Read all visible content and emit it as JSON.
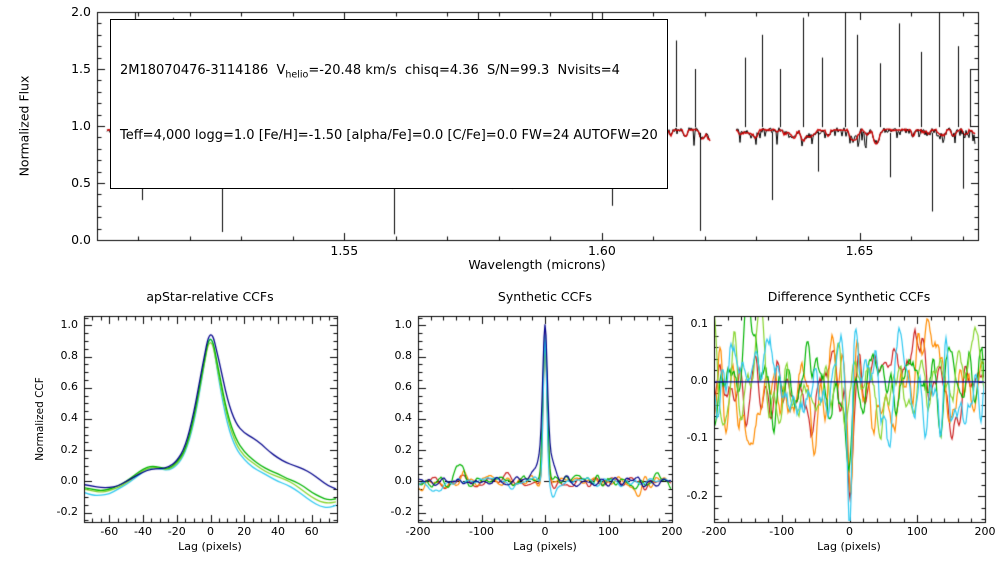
{
  "figure": {
    "background": "#ffffff",
    "text_color": "#000000"
  },
  "annotation": {
    "line1_prefix": "2M18070476-3114186  V",
    "line1_sub": "helio",
    "line1_suffix": "=-20.48 km/s  chisq=4.36  S/N=99.3  Nvisits=4",
    "line2": "Teff=4,000 logg=1.0 [Fe/H]=-1.50 [alpha/Fe]=0.0 [C/Fe]=0.0 FW=24 AUTOFW=20",
    "star_id": "2M18070476-3114186",
    "vhelio_kms": -20.48,
    "chisq": 4.36,
    "snr": 99.3,
    "nvisits": 4,
    "teff": "4,000",
    "logg": 1.0,
    "feh": -1.5,
    "alpha_fe": 0.0,
    "c_fe": 0.0,
    "fw": 24,
    "autofw": 20
  },
  "chart_data": [
    {
      "id": "apogee-spectrum",
      "type": "line",
      "title": "",
      "xlabel": "Wavelength (microns)",
      "ylabel": "Normalized Flux",
      "xlim": [
        1.502,
        1.673
      ],
      "ylim": [
        0.0,
        2.0
      ],
      "xticks": [
        1.55,
        1.6,
        1.65
      ],
      "xtick_labels": [
        "1.55",
        "1.60",
        "1.65"
      ],
      "yticks": [
        0,
        0.5,
        1,
        1.5,
        2
      ],
      "ytick_labels": [
        "0.0",
        "0.5",
        "1.0",
        "1.5",
        "2.0"
      ],
      "xminor": 0.01,
      "yminor": 0.1,
      "grid": false,
      "observed_color": "#000000",
      "model_color": "#cc0000",
      "continuum": 0.965,
      "noise_sigma": 0.022,
      "model_dip_depth_max": 0.13,
      "hair_depth_max": 0.16,
      "segments": [
        [
          1.504,
          1.568
        ],
        [
          1.5705,
          1.621
        ],
        [
          1.626,
          1.6725
        ]
      ],
      "emission_lines": [
        [
          1.5066,
          1.5
        ],
        [
          1.5094,
          2.0
        ],
        [
          1.5132,
          1.4
        ],
        [
          1.5168,
          1.95
        ],
        [
          1.5204,
          1.45
        ],
        [
          1.5236,
          1.8
        ],
        [
          1.5296,
          1.65
        ],
        [
          1.5342,
          1.4
        ],
        [
          1.5414,
          1.85
        ],
        [
          1.5436,
          1.75
        ],
        [
          1.5482,
          1.5
        ],
        [
          1.5524,
          1.4
        ],
        [
          1.5556,
          1.85
        ],
        [
          1.558,
          1.65
        ],
        [
          1.5624,
          1.5
        ],
        [
          1.5722,
          1.45
        ],
        [
          1.576,
          2.0
        ],
        [
          1.58,
          1.5
        ],
        [
          1.5838,
          1.9
        ],
        [
          1.5862,
          1.6
        ],
        [
          1.5905,
          1.75
        ],
        [
          1.5943,
          1.5
        ],
        [
          1.598,
          2.0
        ],
        [
          1.6006,
          1.7
        ],
        [
          1.604,
          1.55
        ],
        [
          1.6076,
          1.85
        ],
        [
          1.6104,
          1.6
        ],
        [
          1.6143,
          1.75
        ],
        [
          1.618,
          1.5
        ],
        [
          1.6278,
          1.6
        ],
        [
          1.631,
          1.8
        ],
        [
          1.6345,
          1.5
        ],
        [
          1.639,
          1.95
        ],
        [
          1.6428,
          1.6
        ],
        [
          1.6472,
          2.0
        ],
        [
          1.6495,
          1.8
        ],
        [
          1.654,
          1.55
        ],
        [
          1.6576,
          1.9
        ],
        [
          1.662,
          1.65
        ],
        [
          1.6655,
          2.0
        ],
        [
          1.6692,
          1.7
        ],
        [
          1.6715,
          1.5
        ]
      ],
      "absorption_lines": [
        [
          1.5108,
          0.35
        ],
        [
          1.5178,
          0.55
        ],
        [
          1.5262,
          0.07
        ],
        [
          1.5338,
          0.5
        ],
        [
          1.5448,
          0.55
        ],
        [
          1.553,
          0.65
        ],
        [
          1.5596,
          0.05
        ],
        [
          1.5648,
          0.5
        ],
        [
          1.5745,
          0.6
        ],
        [
          1.5825,
          0.45
        ],
        [
          1.595,
          0.55
        ],
        [
          1.602,
          0.3
        ],
        [
          1.6115,
          0.5
        ],
        [
          1.619,
          0.08
        ],
        [
          1.633,
          0.35
        ],
        [
          1.642,
          0.6
        ],
        [
          1.656,
          0.55
        ],
        [
          1.664,
          0.25
        ],
        [
          1.67,
          0.45
        ]
      ]
    },
    {
      "id": "apstar-relative-ccfs",
      "type": "line",
      "title": "apStar-relative CCFs",
      "xlabel": "Lag (pixels)",
      "ylabel": "Normalized CCF",
      "xlim": [
        -75,
        75
      ],
      "ylim": [
        -0.26,
        1.06
      ],
      "xticks": [
        -60,
        -40,
        -20,
        0,
        20,
        40,
        60
      ],
      "xtick_labels": [
        "-60",
        "-40",
        "-20",
        "0",
        "20",
        "40",
        "60"
      ],
      "yticks": [
        -0.2,
        0,
        0.2,
        0.4,
        0.6,
        0.8,
        1
      ],
      "ytick_labels": [
        "-0.2",
        "0.0",
        "0.2",
        "0.4",
        "0.6",
        "0.8",
        "1.0"
      ],
      "xminor": 5,
      "yminor": 0.05,
      "grid": false,
      "lags": [
        -75,
        -70,
        -65,
        -60,
        -55,
        -50,
        -45,
        -40,
        -35,
        -30,
        -25,
        -20,
        -15,
        -10,
        -5,
        0,
        5,
        10,
        15,
        20,
        25,
        30,
        35,
        40,
        45,
        50,
        55,
        60,
        65,
        70,
        75
      ],
      "series": [
        {
          "name": "visit-cyan",
          "color": "#2fc8f0",
          "ccf": [
            -0.07,
            -0.09,
            -0.09,
            -0.08,
            -0.05,
            -0.02,
            0.02,
            0.06,
            0.09,
            0.08,
            0.07,
            0.1,
            0.18,
            0.36,
            0.66,
            1.0,
            0.64,
            0.36,
            0.21,
            0.14,
            0.09,
            0.06,
            0.03,
            0.0,
            -0.02,
            -0.05,
            -0.09,
            -0.13,
            -0.16,
            -0.17,
            -0.15
          ]
        },
        {
          "name": "visit-lightgreen",
          "color": "#86d42e",
          "ccf": [
            -0.05,
            -0.06,
            -0.07,
            -0.06,
            -0.04,
            -0.01,
            0.03,
            0.07,
            0.09,
            0.085,
            0.075,
            0.11,
            0.19,
            0.38,
            0.68,
            0.96,
            0.67,
            0.4,
            0.24,
            0.16,
            0.12,
            0.08,
            0.05,
            0.03,
            0.01,
            -0.02,
            -0.06,
            -0.1,
            -0.13,
            -0.14,
            -0.13
          ]
        },
        {
          "name": "visit-green",
          "color": "#00b400",
          "ccf": [
            -0.04,
            -0.05,
            -0.06,
            -0.05,
            -0.03,
            0.0,
            0.04,
            0.08,
            0.1,
            0.09,
            0.08,
            0.12,
            0.2,
            0.4,
            0.7,
            0.98,
            0.7,
            0.43,
            0.27,
            0.19,
            0.14,
            0.1,
            0.07,
            0.05,
            0.02,
            0.0,
            -0.03,
            -0.07,
            -0.1,
            -0.12,
            -0.11
          ]
        },
        {
          "name": "combined",
          "color": "#00008b",
          "ccf": [
            -0.02,
            -0.03,
            -0.04,
            -0.04,
            -0.03,
            0.0,
            0.03,
            0.06,
            0.08,
            0.08,
            0.09,
            0.13,
            0.22,
            0.43,
            0.73,
            1.0,
            0.78,
            0.52,
            0.37,
            0.31,
            0.28,
            0.24,
            0.19,
            0.15,
            0.12,
            0.1,
            0.08,
            0.05,
            0.01,
            -0.03,
            -0.05
          ]
        }
      ]
    },
    {
      "id": "synthetic-ccfs",
      "type": "line",
      "title": "Synthetic CCFs",
      "xlabel": "Lag (pixels)",
      "ylabel": "",
      "xlim": [
        -200,
        200
      ],
      "ylim": [
        -0.26,
        1.06
      ],
      "xticks": [
        -200,
        -100,
        0,
        100,
        200
      ],
      "xtick_labels": [
        "-200",
        "-100",
        "0",
        "100",
        "200"
      ],
      "yticks": [
        -0.2,
        0,
        0.2,
        0.4,
        0.6,
        0.8,
        1
      ],
      "ytick_labels": [
        "-0.2",
        "0.0",
        "0.2",
        "0.4",
        "0.6",
        "0.8",
        "1.0"
      ],
      "xminor": 20,
      "yminor": 0.05,
      "grid": false,
      "zero_line": "dashed",
      "series": [
        {
          "name": "visit-1",
          "color": "#cc2222",
          "seed": 12,
          "noise_amp": 0.055,
          "peaks": [
            [
              0,
              4.5,
              0.96
            ]
          ],
          "features": [
            [
              -130,
              8,
              0.07
            ],
            [
              -62,
              6,
              0.05
            ]
          ]
        },
        {
          "name": "visit-2",
          "color": "#ff8c00",
          "seed": 13,
          "noise_amp": 0.06,
          "peaks": [
            [
              0,
              4,
              0.92
            ]
          ],
          "features": [
            [
              -128,
              7,
              0.09
            ],
            [
              148,
              8,
              -0.07
            ]
          ]
        },
        {
          "name": "visit-3",
          "color": "#00b400",
          "seed": 14,
          "noise_amp": 0.055,
          "peaks": [
            [
              0,
              5,
              0.88
            ]
          ],
          "features": [
            [
              -133,
              9,
              0.12
            ],
            [
              82,
              7,
              0.05
            ]
          ]
        },
        {
          "name": "visit-4",
          "color": "#2fc8f0",
          "seed": 15,
          "noise_amp": 0.05,
          "peaks": [
            [
              0,
              3.8,
              0.97
            ]
          ],
          "features": [
            [
              12,
              6,
              -0.11
            ],
            [
              -172,
              8,
              -0.07
            ]
          ]
        },
        {
          "name": "combined",
          "color": "#00008b",
          "seed": 11,
          "noise_amp": 0.035,
          "peaks": [
            [
              0,
              5,
              0.8
            ],
            [
              0,
              16,
              0.22
            ]
          ],
          "features": []
        }
      ]
    },
    {
      "id": "difference-synthetic-ccfs",
      "type": "line",
      "title": "Difference Synthetic CCFs",
      "xlabel": "Lag (pixels)",
      "ylabel": "",
      "xlim": [
        -200,
        200
      ],
      "ylim": [
        -0.245,
        0.115
      ],
      "xticks": [
        -200,
        -100,
        0,
        100,
        200
      ],
      "xtick_labels": [
        "-200",
        "-100",
        "0",
        "100",
        "200"
      ],
      "yticks": [
        -0.2,
        -0.1,
        0,
        0.1
      ],
      "ytick_labels": [
        "-0.2",
        "-0.1",
        "0.0",
        "0.1"
      ],
      "xminor": 20,
      "yminor": 0.02,
      "grid": false,
      "series": [
        {
          "name": "visit-1",
          "color": "#cc2222",
          "seed": 21,
          "noise_amp": 0.1,
          "features": [
            [
              0,
              5,
              -0.17
            ],
            [
              -60,
              8,
              -0.09
            ],
            [
              -150,
              10,
              -0.05
            ],
            [
              100,
              12,
              0.05
            ]
          ]
        },
        {
          "name": "visit-2",
          "color": "#ff8c00",
          "seed": 22,
          "noise_amp": 0.11,
          "features": [
            [
              2,
              5,
              -0.22
            ],
            [
              -55,
              7,
              -0.1
            ],
            [
              125,
              10,
              0.05
            ],
            [
              -190,
              6,
              0.06
            ]
          ]
        },
        {
          "name": "visit-3",
          "color": "#00b400",
          "seed": 23,
          "noise_amp": 0.1,
          "features": [
            [
              -148,
              6,
              0.1
            ],
            [
              0,
              6,
              -0.12
            ],
            [
              88,
              8,
              0.06
            ],
            [
              196,
              6,
              0.09
            ]
          ]
        },
        {
          "name": "visit-5",
          "color": "#86d42e",
          "seed": 25,
          "noise_amp": 0.1,
          "features": [
            [
              -5,
              6,
              -0.1
            ],
            [
              -130,
              8,
              0.08
            ],
            [
              186,
              6,
              0.08
            ],
            [
              -200,
              5,
              0.07
            ]
          ]
        },
        {
          "name": "visit-4",
          "color": "#2fc8f0",
          "seed": 24,
          "noise_amp": 0.1,
          "features": [
            [
              1,
              4,
              -0.26
            ],
            [
              -100,
              8,
              -0.07
            ],
            [
              60,
              9,
              -0.05
            ]
          ]
        },
        {
          "name": "zero-line",
          "color": "#00008b",
          "flat": 0
        }
      ]
    }
  ]
}
